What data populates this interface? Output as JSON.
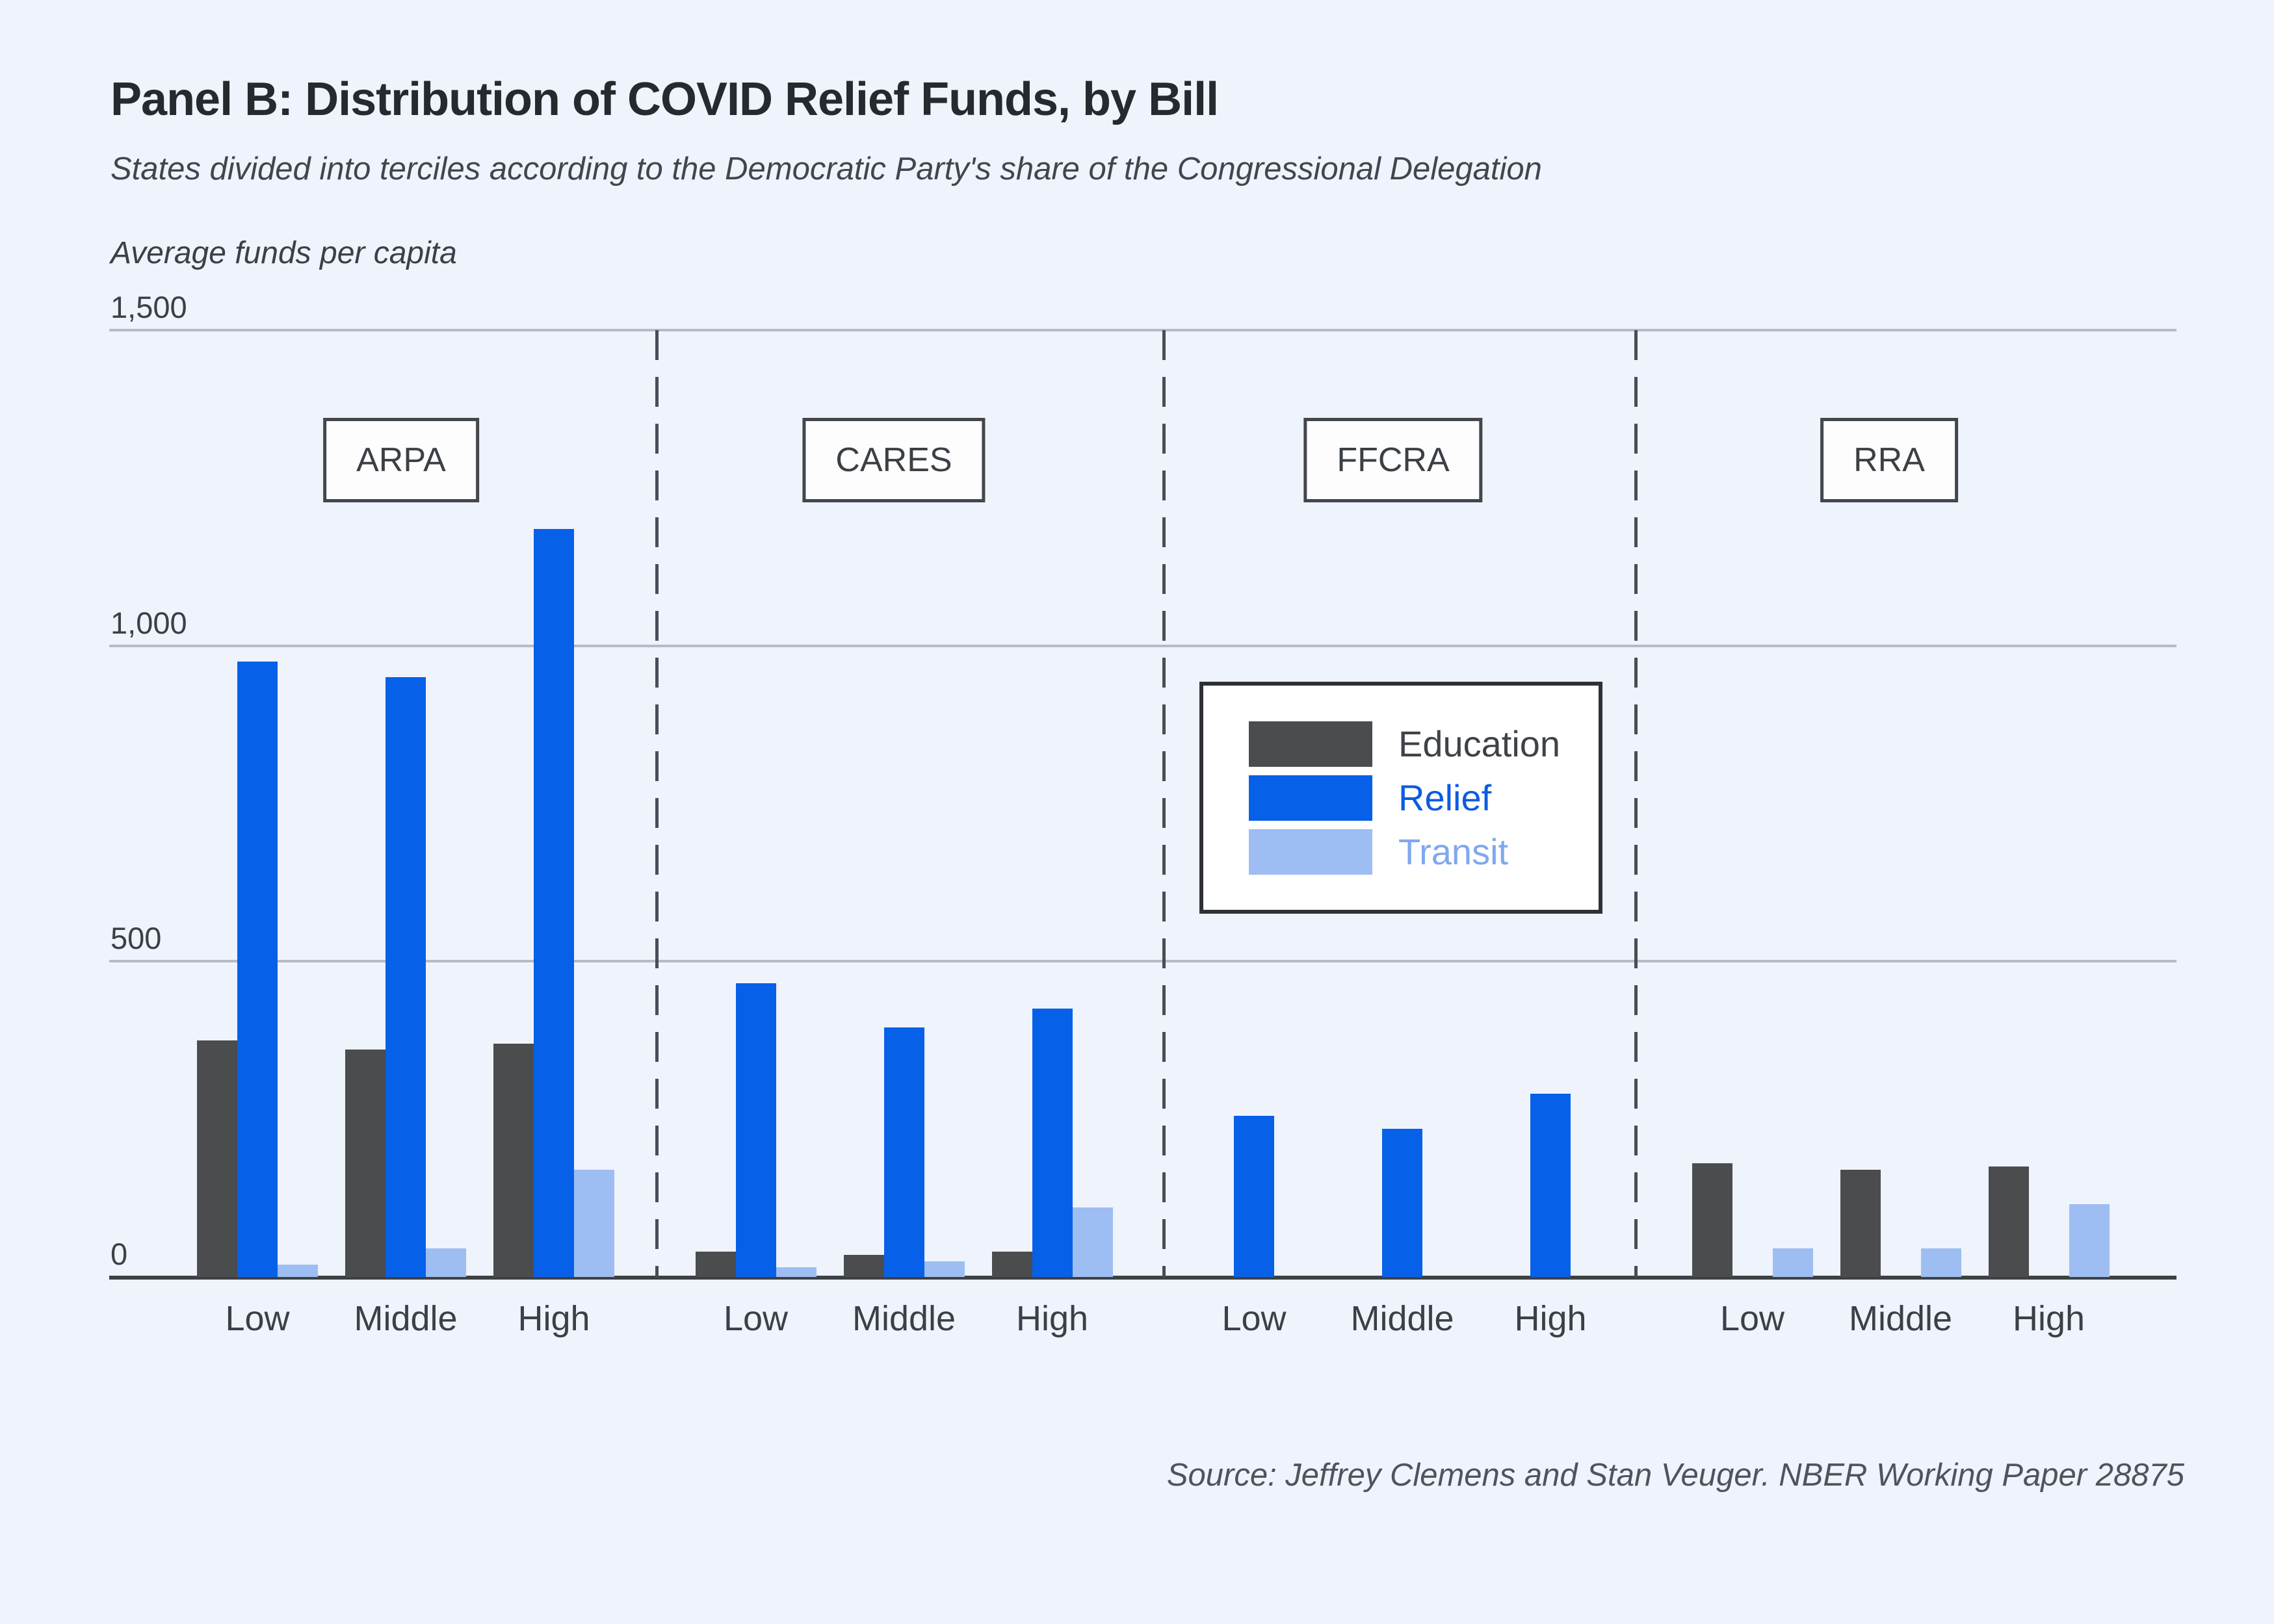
{
  "page": {
    "background_color": "#eff3fc"
  },
  "header": {
    "title": "Panel B: Distribution of COVID Relief Funds, by Bill",
    "subtitle": "States divided into terciles according to the Democratic Party's share of the Congressional Delegation"
  },
  "chart_data": {
    "type": "bar",
    "title": "Panel B: Distribution of COVID Relief Funds, by Bill",
    "subtitle": "States divided into terciles according to the Democratic Party's share of the Congressional Delegation",
    "ylabel": "Average funds per capita",
    "xlabel": "",
    "ylim": [
      0,
      1500
    ],
    "grid": true,
    "y_axis": {
      "label": "Average funds per capita",
      "tick_values": [
        0,
        500,
        1000,
        1500
      ],
      "tick_labels": [
        "0",
        "500",
        "1,000",
        "1,500"
      ]
    },
    "categories": [
      "Low",
      "Middle",
      "High"
    ],
    "groups": [
      {
        "bill": "ARPA",
        "series": [
          {
            "name": "Education",
            "values": [
              375,
              360,
              370
            ]
          },
          {
            "name": "Relief",
            "values": [
              975,
              950,
              1185
            ]
          },
          {
            "name": "Transit",
            "values": [
              20,
              45,
              170
            ]
          }
        ]
      },
      {
        "bill": "CARES",
        "series": [
          {
            "name": "Education",
            "values": [
              40,
              35,
              40
            ]
          },
          {
            "name": "Relief",
            "values": [
              465,
              395,
              425
            ]
          },
          {
            "name": "Transit",
            "values": [
              15,
              25,
              110
            ]
          }
        ]
      },
      {
        "bill": "FFCRA",
        "series": [
          {
            "name": "Education",
            "values": [
              0,
              0,
              0
            ]
          },
          {
            "name": "Relief",
            "values": [
              255,
              235,
              290
            ]
          },
          {
            "name": "Transit",
            "values": [
              0,
              0,
              0
            ]
          }
        ]
      },
      {
        "bill": "RRA",
        "series": [
          {
            "name": "Education",
            "values": [
              180,
              170,
              175
            ]
          },
          {
            "name": "Relief",
            "values": [
              0,
              0,
              0
            ]
          },
          {
            "name": "Transit",
            "values": [
              45,
              45,
              115
            ]
          }
        ]
      }
    ],
    "legend": {
      "position": "center-right",
      "entries": [
        {
          "label": "Education",
          "color": "#4a4c4e",
          "text_color": "#3f4348"
        },
        {
          "label": "Relief",
          "color": "#0760e8",
          "text_color": "#0b5ce0"
        },
        {
          "label": "Transit",
          "color": "#9dbdf3",
          "text_color": "#7fa8ee"
        }
      ]
    }
  },
  "footer": {
    "source": "Source: Jeffrey Clemens and Stan Veuger. NBER Working Paper 28875"
  },
  "colors": {
    "education_bar": "#4a4c4e",
    "relief_bar": "#0760e8",
    "transit_bar": "#9dbdf3",
    "gridline": "#b6bcc4",
    "axis_line": "#3d4145",
    "divider": "#494e54",
    "text_dark": "#26292d",
    "text_gray": "#41464d"
  }
}
